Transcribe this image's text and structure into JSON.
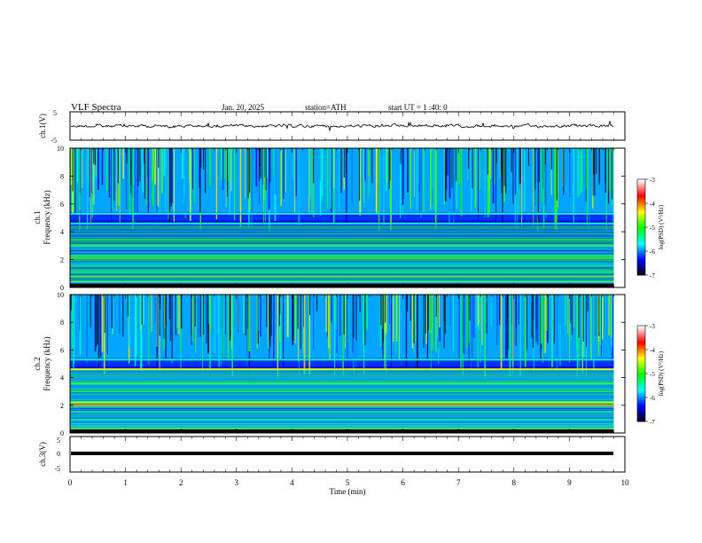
{
  "header": {
    "title": "VLF Spectra",
    "date": "Jan. 20, 2025",
    "station": "station=ATH",
    "start": "start UT =  1 :40: 0"
  },
  "chart_data": [
    {
      "type": "line",
      "ylabel": "ch.1(V)",
      "ylim": [
        -5,
        5
      ],
      "yticks": [
        "5",
        "-5"
      ],
      "xlim": [
        0,
        10
      ]
    },
    {
      "type": "heatmap",
      "ylabel": "ch.1\nFrequency (kHz)",
      "ylim": [
        0,
        10
      ],
      "yticks": [
        "0",
        "2",
        "4",
        "6",
        "8",
        "10"
      ],
      "xlim": [
        0,
        10
      ],
      "colorbar": {
        "label": "log(PSD) (V²/Hz)",
        "ticks": [
          "-3",
          "-4",
          "-5",
          "-6",
          "-7"
        ],
        "range": [
          -7,
          -3
        ]
      },
      "bands_khz": [
        {
          "f": 0.4,
          "level": -4.2
        },
        {
          "f": 0.8,
          "level": -4.6
        },
        {
          "f": 1.1,
          "level": -5.0
        },
        {
          "f": 1.6,
          "level": -5.8
        },
        {
          "f": 2.1,
          "level": -4.8
        },
        {
          "f": 2.3,
          "level": -4.9
        },
        {
          "f": 3.0,
          "level": -5.3
        },
        {
          "f": 3.4,
          "level": -5.1
        },
        {
          "f": 4.6,
          "level": -5.5
        },
        {
          "f": 5.3,
          "level": -5.6
        }
      ]
    },
    {
      "type": "heatmap",
      "ylabel": "ch.2\nFrequency (kHz)",
      "ylim": [
        0,
        10
      ],
      "yticks": [
        "0",
        "2",
        "4",
        "6",
        "8",
        "10"
      ],
      "xlim": [
        0,
        10
      ],
      "colorbar": {
        "label": "log(PSD) (V²/Hz)",
        "ticks": [
          "-3",
          "-4",
          "-5",
          "-6",
          "-7"
        ],
        "range": [
          -7,
          -3
        ]
      },
      "bands_khz": [
        {
          "f": 0.3,
          "level": -4.5
        },
        {
          "f": 1.0,
          "level": -5.2
        },
        {
          "f": 1.5,
          "level": -5.3
        },
        {
          "f": 2.0,
          "level": -4.1
        },
        {
          "f": 2.2,
          "level": -4.3
        },
        {
          "f": 3.0,
          "level": -5.0
        },
        {
          "f": 3.5,
          "level": -4.9
        },
        {
          "f": 4.6,
          "level": -4.4
        },
        {
          "f": 5.3,
          "level": -5.5
        }
      ]
    },
    {
      "type": "line",
      "ylabel": "ch.3(V)",
      "ylim": [
        -5,
        5
      ],
      "yticks": [
        "5",
        "0",
        "-5"
      ],
      "xlim": [
        0,
        10
      ],
      "value_constant": -0.4
    }
  ],
  "x_axis": {
    "label": "Time (min)",
    "ticks": [
      "0",
      "1",
      "2",
      "3",
      "4",
      "5",
      "6",
      "7",
      "8",
      "9",
      "10"
    ]
  },
  "data_end_min": 9.8,
  "colors": {
    "background": "#ffffff",
    "axis": "#000000",
    "colormap": [
      "#000000",
      "#0000ff",
      "#00ffff",
      "#00ff00",
      "#ffff00",
      "#ff0000",
      "#ffffff"
    ]
  }
}
